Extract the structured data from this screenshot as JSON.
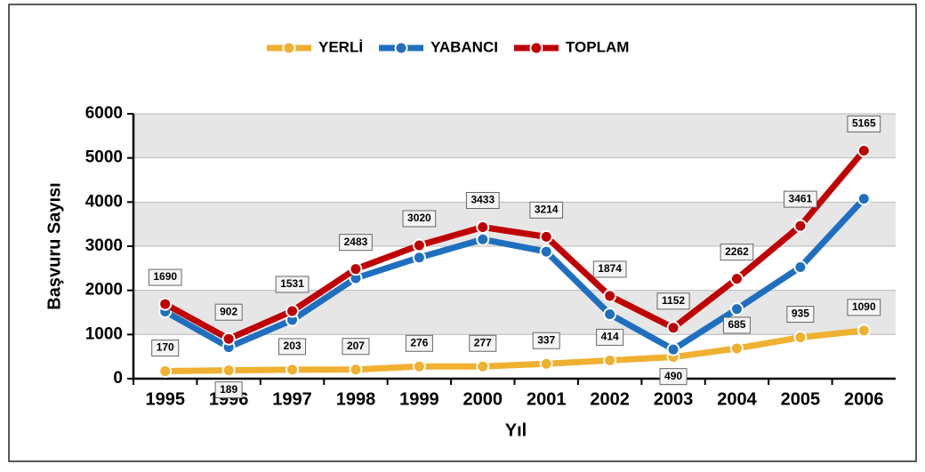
{
  "chart_data": {
    "type": "line",
    "x_label": "Yıl",
    "y_label": "Başvuru Sayısı",
    "categories": [
      "1995",
      "1996",
      "1997",
      "1998",
      "1999",
      "2000",
      "2001",
      "2002",
      "2003",
      "2004",
      "2005",
      "2006"
    ],
    "series": [
      {
        "name": "YERLİ",
        "color": "#f0b030",
        "values": [
          170,
          189,
          203,
          207,
          276,
          277,
          337,
          414,
          490,
          685,
          935,
          1090
        ]
      },
      {
        "name": "YABANCI",
        "color": "#1f6fc0",
        "values": [
          1520,
          713,
          1328,
          2276,
          2744,
          3156,
          2877,
          1460,
          662,
          1577,
          2526,
          4075
        ]
      },
      {
        "name": "TOPLAM",
        "color": "#c00000",
        "values": [
          1690,
          902,
          1531,
          2483,
          3020,
          3433,
          3214,
          1874,
          1152,
          2262,
          3461,
          5165
        ]
      }
    ],
    "ylim": [
      0,
      6000
    ],
    "yticks": [
      0,
      1000,
      2000,
      3000,
      4000,
      5000,
      6000
    ],
    "grid": true
  }
}
